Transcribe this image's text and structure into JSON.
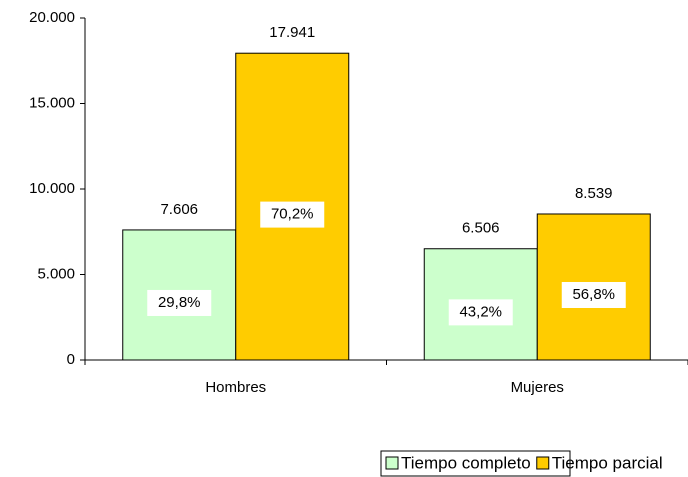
{
  "chart_data": {
    "type": "bar",
    "categories": [
      "Hombres",
      "Mujeres"
    ],
    "series": [
      {
        "name": "Tiempo completo",
        "color": "#ccffcc",
        "values": [
          7606,
          6506
        ],
        "value_labels": [
          "7.606",
          "6.506"
        ],
        "percent_labels": [
          "29,8%",
          "43,2%"
        ]
      },
      {
        "name": "Tiempo parcial",
        "color": "#ffcc00",
        "values": [
          17941,
          8539
        ],
        "value_labels": [
          "17.941",
          "8.539"
        ],
        "percent_labels": [
          "70,2%",
          "56,8%"
        ]
      }
    ],
    "ylim": [
      0,
      20000
    ],
    "yticks": [
      0,
      {
        "value": 5000,
        "label": "5.000"
      },
      {
        "value": 10000,
        "label": "10.000"
      },
      {
        "value": 15000,
        "label": "15.000"
      },
      {
        "value": 20000,
        "label": "20.000"
      }
    ],
    "grid": false,
    "legend": "bottom"
  }
}
